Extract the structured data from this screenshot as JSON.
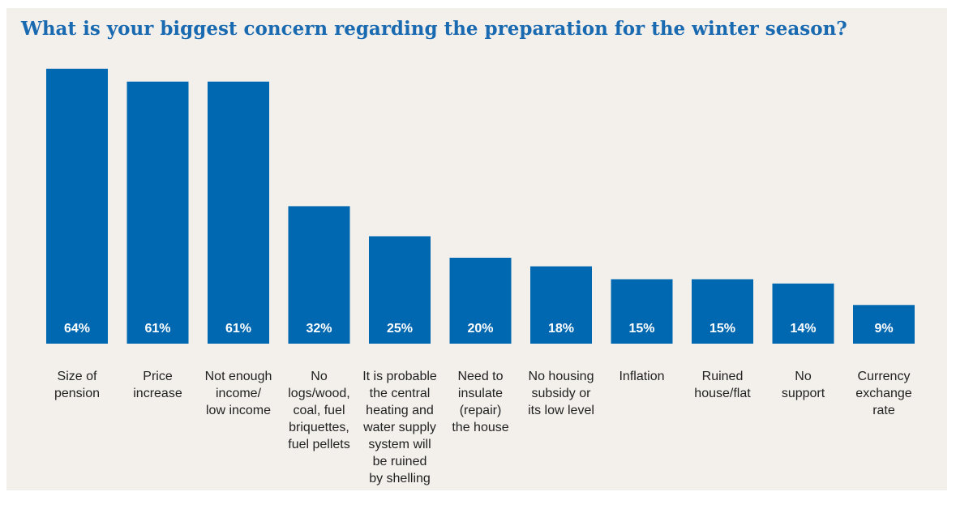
{
  "title": "What is your biggest concern regarding the preparation for the winter season?",
  "colors": {
    "bar": "#0067b1",
    "panel": "#f3f0ec",
    "title": "#1a6ab1"
  },
  "chart_data": {
    "type": "bar",
    "title": "What is your biggest concern regarding the preparation for the winter season?",
    "categories": [
      [
        "Size of",
        "pension"
      ],
      [
        "Price",
        "increase"
      ],
      [
        "Not enough",
        "income/",
        "low income"
      ],
      [
        "No",
        "logs/wood,",
        "coal, fuel",
        "briquettes,",
        "fuel pellets"
      ],
      [
        "It is probable",
        "the central",
        "heating and",
        "water supply",
        "system will",
        "be ruined",
        "by shelling"
      ],
      [
        "Need to",
        "insulate",
        "(repair)",
        "the house"
      ],
      [
        "No housing",
        "subsidy or",
        "its low level"
      ],
      [
        "Inflation"
      ],
      [
        "Ruined",
        "house/flat"
      ],
      [
        "No",
        "support"
      ],
      [
        "Currency",
        "exchange",
        "rate"
      ]
    ],
    "values": [
      64,
      61,
      61,
      32,
      25,
      20,
      18,
      15,
      15,
      14,
      9
    ],
    "value_labels": [
      "64%",
      "61%",
      "61%",
      "32%",
      "25%",
      "20%",
      "18%",
      "15%",
      "15%",
      "14%",
      "9%"
    ],
    "unit": "%",
    "xlabel": "",
    "ylabel": "",
    "grid": false,
    "legend": "none"
  }
}
